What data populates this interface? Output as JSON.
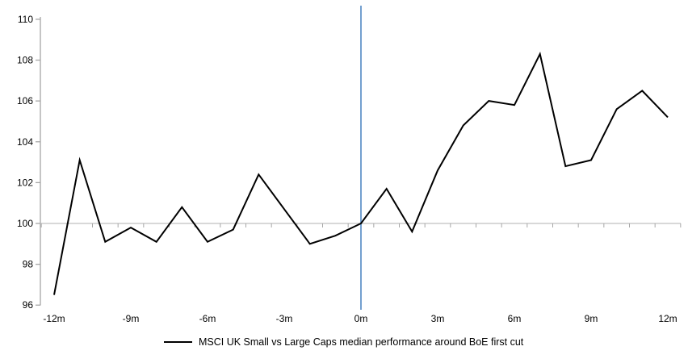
{
  "chart_data": {
    "type": "line",
    "x_unit": "months relative to first cut",
    "x": [
      -12,
      -11,
      -10,
      -9,
      -8,
      -7,
      -6,
      -5,
      -4,
      -3,
      -2,
      -1,
      0,
      1,
      2,
      3,
      4,
      5,
      6,
      7,
      8,
      9,
      10,
      11,
      12
    ],
    "series": [
      {
        "name": "MSCI UK Small vs Large Caps median performance around BoE first cut",
        "values": [
          96.5,
          103.1,
          99.1,
          99.8,
          99.1,
          100.8,
          99.1,
          99.7,
          102.4,
          100.7,
          99.0,
          99.4,
          100.0,
          101.7,
          99.6,
          102.6,
          104.8,
          106.0,
          105.8,
          108.3,
          102.8,
          103.1,
          105.6,
          106.5,
          105.2
        ]
      }
    ],
    "title": "",
    "xlabel": "",
    "ylabel": "",
    "xlim": [
      -12.5,
      12.5
    ],
    "ylim": [
      96,
      110
    ],
    "y_ticks": [
      96,
      98,
      100,
      102,
      104,
      106,
      108,
      110
    ],
    "y_tick_labels": [
      "96",
      "98",
      "100",
      "102",
      "104",
      "106",
      "108",
      "110"
    ],
    "x_tick_months": [
      -12,
      -9,
      -6,
      -3,
      0,
      3,
      6,
      9,
      12
    ],
    "x_tick_labels": [
      "-12m",
      "-9m",
      "-6m",
      "-3m",
      "0m",
      "3m",
      "6m",
      "9m",
      "12m"
    ],
    "baseline_value": 100,
    "event_line_x": 0,
    "grid": "single horizontal line at 100 only",
    "legend_position": "bottom-center",
    "colors": {
      "series_line": "#000000",
      "event_line": "#5b8fc7",
      "axis": "#a6a6a6",
      "baseline": "#c0c0c0",
      "text": "#000000"
    }
  }
}
